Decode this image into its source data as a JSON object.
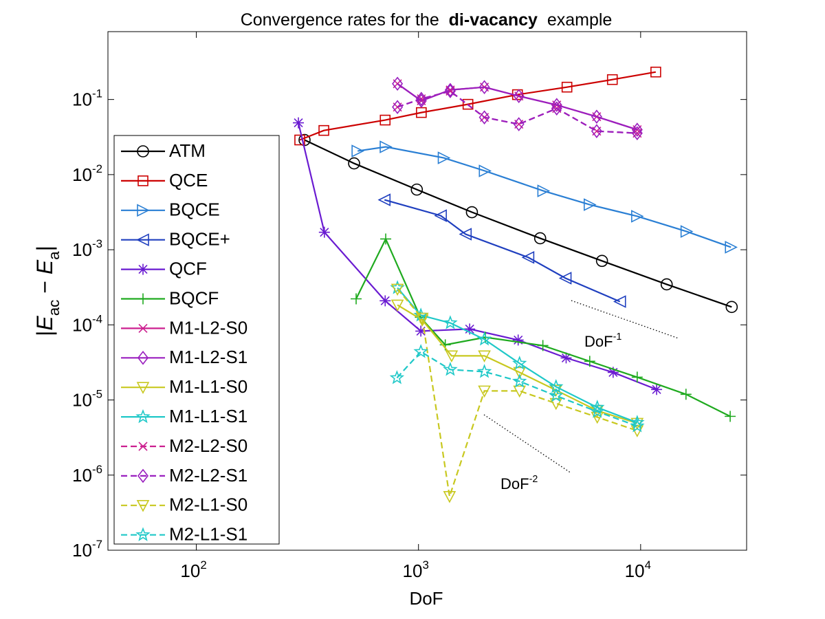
{
  "chart_data": {
    "type": "line",
    "title": [
      "Convergence rates for the",
      "di-vacancy",
      "example"
    ],
    "x_label": "DoF",
    "y_label": "|E_{ac} − E_{a}|",
    "log_x": true,
    "log_y": true,
    "xlim": [
      40,
      30000
    ],
    "ylim": [
      1e-07,
      0.8
    ],
    "xticks": [
      {
        "value": 100,
        "label": "10^2"
      },
      {
        "value": 1000,
        "label": "10^3"
      },
      {
        "value": 10000,
        "label": "10^4"
      }
    ],
    "yticks": [
      {
        "value": 1e-07,
        "label": "10^-7"
      },
      {
        "value": 1e-06,
        "label": "10^-6"
      },
      {
        "value": 1e-05,
        "label": "10^-5"
      },
      {
        "value": 0.0001,
        "label": "10^-4"
      },
      {
        "value": 0.001,
        "label": "10^-3"
      },
      {
        "value": 0.01,
        "label": "10^-2"
      },
      {
        "value": 0.1,
        "label": "10^-1"
      }
    ],
    "legend": "left",
    "annotations": [
      "DoF^-1",
      "DoF^-2"
    ],
    "series": [
      {
        "name": "ATM",
        "color": "#000000",
        "marker": "circle",
        "dash": false,
        "x": [
          307,
          513,
          983,
          1740,
          3530,
          6700,
          13100,
          25700
        ],
        "values": [
          0.0289,
          0.0141,
          0.00632,
          0.00316,
          0.00142,
          0.00071,
          0.000346,
          0.000173
        ]
      },
      {
        "name": "QCE",
        "color": "#cc0000",
        "marker": "square",
        "dash": false,
        "x": [
          292,
          375,
          708,
          1030,
          1670,
          2790,
          4660,
          7460,
          11700
        ],
        "values": [
          0.0289,
          0.0387,
          0.0532,
          0.067,
          0.0863,
          0.116,
          0.146,
          0.184,
          0.232
        ]
      },
      {
        "name": "BQCE",
        "color": "#2a7fd4",
        "marker": "tri-right",
        "dash": false,
        "x": [
          532,
          712,
          1300,
          1990,
          3650,
          5900,
          9650,
          16100,
          25500
        ],
        "values": [
          0.0206,
          0.0234,
          0.0167,
          0.0112,
          0.00607,
          0.00398,
          0.00279,
          0.00175,
          0.00108
        ]
      },
      {
        "name": "BQCE+",
        "color": "#1f3fbf",
        "marker": "tri-left",
        "dash": false,
        "x": [
          703,
          1260,
          1630,
          3120,
          4590,
          8070
        ],
        "values": [
          0.00461,
          0.00284,
          0.00161,
          0.00079,
          0.000418,
          0.000204
        ]
      },
      {
        "name": "QCF",
        "color": "#6a1bd1",
        "marker": "star6",
        "dash": false,
        "x": [
          288,
          377,
          708,
          1025,
          1700,
          2810,
          4620,
          7520,
          11800
        ],
        "values": [
          0.0489,
          0.00171,
          0.000209,
          8.26e-05,
          8.8e-05,
          6.28e-05,
          3.63e-05,
          2.33e-05,
          1.38e-05
        ]
      },
      {
        "name": "BQCF",
        "color": "#1faa1f",
        "marker": "plus",
        "dash": false,
        "x": [
          524,
          712,
          1020,
          1320,
          2000,
          3630,
          5900,
          9650,
          16000,
          25300
        ],
        "values": [
          0.000222,
          0.00139,
          0.000126,
          5.42e-05,
          6.83e-05,
          5.3e-05,
          3.27e-05,
          2.01e-05,
          1.19e-05,
          6.05e-06
        ]
      },
      {
        "name": "M1-L2-S0",
        "color": "#cc1f8f",
        "marker": "x",
        "dash": false,
        "x": [
          804,
          1030,
          1390,
          1980,
          2830,
          4190,
          6340,
          9650
        ],
        "values": [
          0.162,
          0.096,
          0.134,
          0.146,
          0.111,
          0.0845,
          0.059,
          0.0396
        ]
      },
      {
        "name": "M1-L2-S1",
        "color": "#9a1fbf",
        "marker": "diamond",
        "dash": false,
        "x": [
          804,
          1030,
          1390,
          1980,
          2830,
          4190,
          6340,
          9650
        ],
        "values": [
          0.162,
          0.096,
          0.134,
          0.146,
          0.111,
          0.0845,
          0.059,
          0.0396
        ]
      },
      {
        "name": "M1-L1-S0",
        "color": "#c8c81f",
        "marker": "tri-down",
        "dash": false,
        "x": [
          804,
          1040,
          1410,
          1980,
          2850,
          4160,
          6380,
          9650
        ],
        "values": [
          0.000184,
          0.000116,
          3.87e-05,
          3.87e-05,
          2.33e-05,
          1.35e-05,
          7.2e-06,
          4.9e-06
        ]
      },
      {
        "name": "M1-L1-S1",
        "color": "#1fc8c8",
        "marker": "pentagram",
        "dash": false,
        "x": [
          804,
          1025,
          1390,
          1980,
          2850,
          4160,
          6380,
          9650
        ],
        "values": [
          0.000311,
          0.000134,
          0.000106,
          6.41e-05,
          3.07e-05,
          1.5e-05,
          7.96e-06,
          5e-06
        ]
      },
      {
        "name": "M2-L2-S0",
        "color": "#cc1f8f",
        "marker": "x",
        "dash": true,
        "x": [
          804,
          1030,
          1390,
          1980,
          2830,
          4190,
          6340,
          9650
        ],
        "values": [
          0.0793,
          0.102,
          0.129,
          0.0578,
          0.0469,
          0.076,
          0.0379,
          0.0356
        ]
      },
      {
        "name": "M2-L2-S1",
        "color": "#9a1fbf",
        "marker": "diamond",
        "dash": true,
        "x": [
          804,
          1030,
          1390,
          1980,
          2830,
          4190,
          6340,
          9650
        ],
        "values": [
          0.0793,
          0.102,
          0.129,
          0.0578,
          0.0469,
          0.076,
          0.0379,
          0.0356
        ]
      },
      {
        "name": "M2-L1-S0",
        "color": "#c8c81f",
        "marker": "tri-down",
        "dash": true,
        "x": [
          804,
          1040,
          1380,
          1980,
          2850,
          4160,
          6380,
          9650
        ],
        "values": [
          0.000299,
          0.000123,
          5.2e-07,
          1.32e-05,
          1.32e-05,
          9e-06,
          5.9e-06,
          3.9e-06
        ]
      },
      {
        "name": "M2-L1-S1",
        "color": "#1fc8c8",
        "marker": "pentagram",
        "dash": true,
        "x": [
          800,
          1025,
          1390,
          1980,
          2850,
          4160,
          6380,
          9650
        ],
        "values": [
          1.97e-05,
          4.39e-05,
          2.54e-05,
          2.38e-05,
          1.77e-05,
          1.14e-05,
          7e-06,
          4.5e-06
        ]
      }
    ]
  }
}
